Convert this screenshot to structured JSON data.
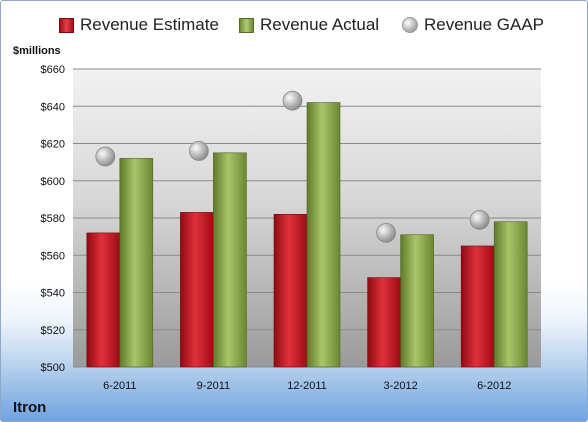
{
  "legend": {
    "estimate": "Revenue Estimate",
    "actual": "Revenue Actual",
    "gaap": "Revenue GAAP"
  },
  "unit_label": "$millions",
  "company": "Itron",
  "colors": {
    "estimate": "#c8141f",
    "actual": "#8fae4d",
    "gaap": "#b8b8b8",
    "plot_bg_top": "#f2f2f2",
    "plot_bg_bottom": "#9a9a9a"
  },
  "chart_data": {
    "type": "bar",
    "categories": [
      "6-2011",
      "9-2011",
      "12-2011",
      "3-2012",
      "6-2012"
    ],
    "series": [
      {
        "name": "Revenue Estimate",
        "values": [
          572,
          583,
          582,
          548,
          565
        ]
      },
      {
        "name": "Revenue Actual",
        "values": [
          612,
          615,
          642,
          571,
          578
        ]
      },
      {
        "name": "Revenue GAAP",
        "values": [
          613,
          616,
          643,
          572,
          579
        ]
      }
    ],
    "ylim": [
      500,
      660
    ],
    "yticks": [
      "$500",
      "$520",
      "$540",
      "$560",
      "$580",
      "$600",
      "$620",
      "$640",
      "$660"
    ],
    "ytick_values": [
      500,
      520,
      540,
      560,
      580,
      600,
      620,
      640,
      660
    ],
    "grid": true,
    "legend_position": "top"
  }
}
